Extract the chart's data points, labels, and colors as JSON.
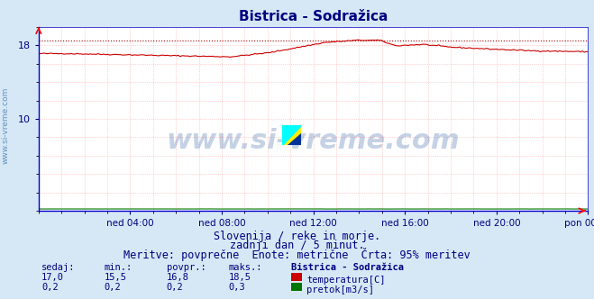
{
  "title": "Bistrica - Sodražica",
  "title_color": "#000080",
  "bg_color": "#d6e8f5",
  "plot_bg_color": "#ffffff",
  "grid_color": "#ffaaaa",
  "axis_color": "#0000cc",
  "tick_color": "#000080",
  "ylim": [
    0,
    20
  ],
  "ytick_vals": [
    10,
    18
  ],
  "ytick_labels": [
    "10",
    "18"
  ],
  "x_ticks_labels": [
    "ned 04:00",
    "ned 08:00",
    "ned 12:00",
    "ned 16:00",
    "ned 20:00",
    "pon 00:00"
  ],
  "temp_color": "#cc0000",
  "flow_color": "#007700",
  "max_line_color": "#aa0000",
  "max_value": 18.5,
  "watermark": "www.si-vreme.com",
  "watermark_color": "#1a4d99",
  "watermark_alpha": 0.25,
  "watermark_fontsize": 22,
  "subtitle1": "Slovenija / reke in morje.",
  "subtitle2": "zadnji dan / 5 minut.",
  "subtitle3": "Meritve: povprečne  Enote: metrične  Črta: 95% meritev",
  "subtitle_color": "#000080",
  "subtitle_fontsize": 8.5,
  "table_sedaj_label": "sedaj:",
  "table_min_label": "min.:",
  "table_povpr_label": "povpr.:",
  "table_maks_label": "maks.:",
  "table_station": "Bistrica - Sodražica",
  "table_color": "#000080",
  "temp_sedaj": "17,0",
  "temp_min": "15,5",
  "temp_povpr": "16,8",
  "temp_maks": "18,5",
  "flow_sedaj": "0,2",
  "flow_min": "0,2",
  "flow_povpr": "0,2",
  "flow_maks": "0,3",
  "legend_temp": "temperatura[C]",
  "legend_flow": "pretok[m3/s]",
  "ylabel_text": "www.si-vreme.com",
  "ylabel_color": "#4a7ab5",
  "ylabel_fontsize": 6.5,
  "n_points": 288
}
